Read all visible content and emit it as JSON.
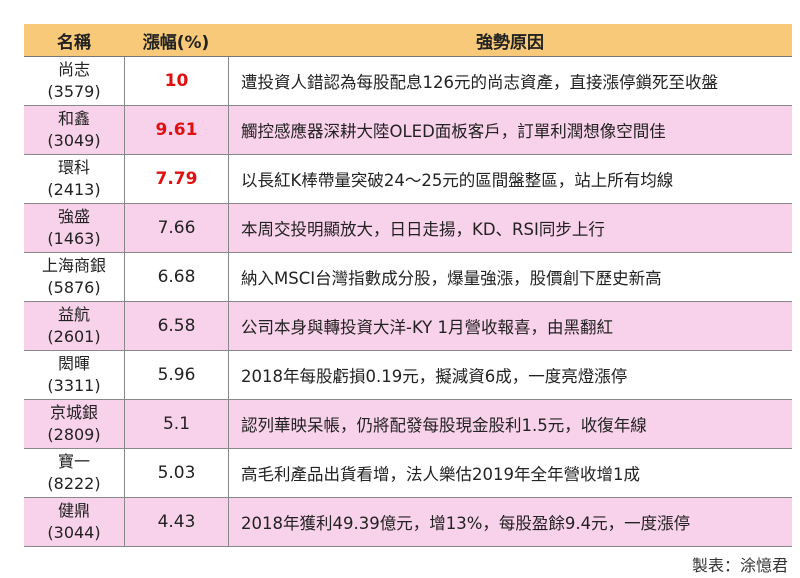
{
  "header": {
    "name": "名稱",
    "change": "漲幅(%)",
    "reason": "強勢原因"
  },
  "rows": [
    {
      "name": "尚志",
      "code": "(3579)",
      "change": "10",
      "reason": "遭投資人錯認為每股配息126元的尚志資產，直接漲停鎖死至收盤",
      "highlight": true
    },
    {
      "name": "和鑫",
      "code": "(3049)",
      "change": "9.61",
      "reason": "觸控感應器深耕大陸OLED面板客戶，訂單利潤想像空間佳",
      "highlight": true
    },
    {
      "name": "環科",
      "code": "(2413)",
      "change": "7.79",
      "reason": "以長紅K棒帶量突破24～25元的區間盤整區，站上所有均線",
      "highlight": true
    },
    {
      "name": "強盛",
      "code": "(1463)",
      "change": "7.66",
      "reason": "本周交投明顯放大，日日走揚，KD、RSI同步上行",
      "highlight": false
    },
    {
      "name": "上海商銀",
      "code": "(5876)",
      "change": "6.68",
      "reason": "納入MSCI台灣指數成分股，爆量強漲，股價創下歷史新高",
      "highlight": false
    },
    {
      "name": "益航",
      "code": "(2601)",
      "change": "6.58",
      "reason": "公司本身與轉投資大洋-KY 1月營收報喜，由黑翻紅",
      "highlight": false
    },
    {
      "name": "閎暉",
      "code": "(3311)",
      "change": "5.96",
      "reason": "2018年每股虧損0.19元，擬減資6成，一度亮燈漲停",
      "highlight": false
    },
    {
      "name": "京城銀",
      "code": "(2809)",
      "change": "5.1",
      "reason": "認列華映呆帳，仍將配發每股現金股利1.5元，收復年線",
      "highlight": false
    },
    {
      "name": "寶一",
      "code": "(8222)",
      "change": "5.03",
      "reason": "高毛利產品出貨看增，法人樂估2019年全年營收增1成",
      "highlight": false
    },
    {
      "name": "健鼎",
      "code": "(3044)",
      "change": "4.43",
      "reason": "2018年獲利49.39億元，增13%，每股盈餘9.4元，一度漲停",
      "highlight": false
    }
  ],
  "footer": "製表：涂憶君",
  "colors": {
    "header_bg": "#f7c978",
    "pink_row": "#f8d2ea",
    "red_text": "#e01010"
  }
}
